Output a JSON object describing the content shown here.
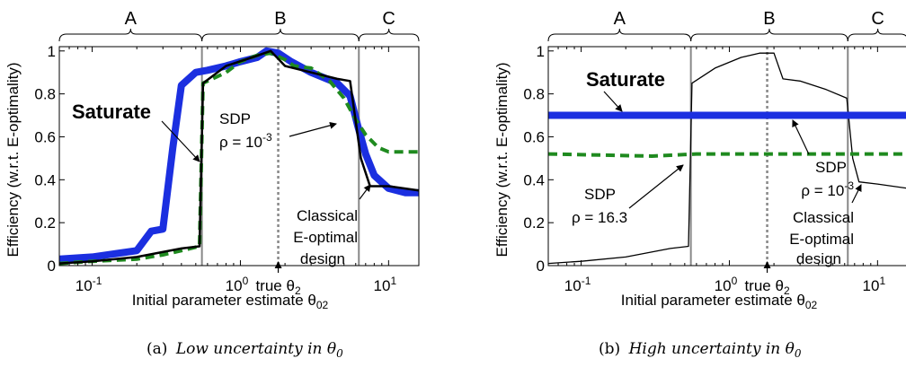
{
  "figure": {
    "captions": [
      {
        "label": "(a)",
        "text": "Low uncertainty in θ",
        "subscript": "0"
      },
      {
        "label": "(b)",
        "text": "High uncertainty in θ",
        "subscript": "0"
      }
    ]
  },
  "chart_data": [
    {
      "type": "line",
      "title": "",
      "xlabel": "Initial parameter estimate θ02",
      "ylabel": "Efficiency (w.r.t. E-optimality)",
      "xscale": "log",
      "xlim": [
        0.06,
        16
      ],
      "ylim": [
        0,
        1.02
      ],
      "xticks": [
        {
          "value": 0.1,
          "label": "10",
          "exp": "-1"
        },
        {
          "value": 1,
          "label": "10",
          "exp": "0"
        },
        {
          "value": 10,
          "label": "10",
          "exp": "1"
        }
      ],
      "yticks": [
        {
          "value": 0,
          "label": "0"
        },
        {
          "value": 0.2,
          "label": "0.2"
        },
        {
          "value": 0.4,
          "label": "0.4"
        },
        {
          "value": 0.6,
          "label": "0.6"
        },
        {
          "value": 0.8,
          "label": "0.8"
        },
        {
          "value": 1,
          "label": "1"
        }
      ],
      "regions": [
        {
          "label": "A",
          "x": [
            0.06,
            0.55
          ]
        },
        {
          "label": "B",
          "x": [
            0.55,
            6.3
          ]
        },
        {
          "label": "C",
          "x": [
            6.3,
            16
          ]
        }
      ],
      "vlines": [
        0.55,
        6.3
      ],
      "true_theta": {
        "x": 1.8,
        "label": "true θ",
        "subscript": "2"
      },
      "series": [
        {
          "name": "Classical E-optimal design",
          "color": "#000000",
          "style": "solid",
          "width": 2.5,
          "x": [
            0.06,
            0.1,
            0.2,
            0.4,
            0.53,
            0.56,
            0.8,
            1.2,
            1.6,
            2.0,
            3.0,
            4.5,
            5.5,
            6.5,
            7.5,
            10,
            16
          ],
          "y": [
            0.01,
            0.02,
            0.04,
            0.08,
            0.09,
            0.85,
            0.93,
            0.97,
            1.0,
            0.93,
            0.9,
            0.87,
            0.86,
            0.5,
            0.37,
            0.37,
            0.35
          ]
        },
        {
          "name": "Saturate",
          "color": "#1b2fe0",
          "style": "solid",
          "width": 8,
          "x": [
            0.06,
            0.1,
            0.2,
            0.25,
            0.3,
            0.35,
            0.4,
            0.5,
            0.6,
            0.8,
            1.0,
            1.3,
            1.5,
            1.8,
            2.2,
            3.0,
            4.5,
            5.5,
            6.2,
            7,
            8,
            10,
            13,
            16
          ],
          "y": [
            0.03,
            0.04,
            0.07,
            0.16,
            0.17,
            0.55,
            0.84,
            0.9,
            0.91,
            0.93,
            0.95,
            0.97,
            1.0,
            0.99,
            0.95,
            0.9,
            0.85,
            0.79,
            0.65,
            0.52,
            0.42,
            0.36,
            0.34,
            0.34
          ]
        },
        {
          "name": "SDP ρ = 10^-3",
          "color": "#1f8a1f",
          "style": "dashed",
          "width": 4,
          "x": [
            0.06,
            0.1,
            0.2,
            0.3,
            0.4,
            0.53,
            0.56,
            0.8,
            1.0,
            1.3,
            1.6,
            2.0,
            2.3,
            3.0,
            4.0,
            5.0,
            6.0,
            7.0,
            8.5,
            10,
            16
          ],
          "y": [
            0.01,
            0.02,
            0.03,
            0.05,
            0.07,
            0.09,
            0.85,
            0.9,
            0.95,
            0.98,
            0.99,
            0.96,
            0.93,
            0.92,
            0.86,
            0.78,
            0.68,
            0.61,
            0.55,
            0.53,
            0.53
          ]
        }
      ],
      "annotations": [
        {
          "text": "Saturate",
          "bold": true
        },
        {
          "text": "SDP"
        },
        {
          "text": "ρ = 10",
          "exp": "-3"
        },
        {
          "text": "Classical"
        },
        {
          "text": "E-optimal"
        },
        {
          "text": "design"
        }
      ]
    },
    {
      "type": "line",
      "title": "",
      "xlabel": "Initial parameter estimate θ02",
      "ylabel": "Efficiency (w.r.t. E-optimality)",
      "xscale": "log",
      "xlim": [
        0.06,
        16
      ],
      "ylim": [
        0,
        1.02
      ],
      "xticks": [
        {
          "value": 0.1,
          "label": "10",
          "exp": "-1"
        },
        {
          "value": 1,
          "label": "10",
          "exp": "0"
        },
        {
          "value": 10,
          "label": "10",
          "exp": "1"
        }
      ],
      "yticks": [
        {
          "value": 0,
          "label": "0"
        },
        {
          "value": 0.2,
          "label": "0.2"
        },
        {
          "value": 0.4,
          "label": "0.4"
        },
        {
          "value": 0.6,
          "label": "0.6"
        },
        {
          "value": 0.8,
          "label": "0.8"
        },
        {
          "value": 1,
          "label": "1"
        }
      ],
      "regions": [
        {
          "label": "A",
          "x": [
            0.06,
            0.55
          ]
        },
        {
          "label": "B",
          "x": [
            0.55,
            6.3
          ]
        },
        {
          "label": "C",
          "x": [
            6.3,
            16
          ]
        }
      ],
      "vlines": [
        0.55,
        6.3
      ],
      "true_theta": {
        "x": 1.8,
        "label": "true θ",
        "subscript": "2"
      },
      "series": [
        {
          "name": "Classical E-optimal design",
          "color": "#000000",
          "style": "solid",
          "width": 1.3,
          "x": [
            0.06,
            0.1,
            0.2,
            0.4,
            0.53,
            0.56,
            0.8,
            1.2,
            1.6,
            2.0,
            2.3,
            3.0,
            4.5,
            6.2,
            6.8,
            7.5,
            10,
            16
          ],
          "y": [
            0.01,
            0.02,
            0.04,
            0.08,
            0.09,
            0.85,
            0.92,
            0.97,
            0.99,
            0.99,
            0.87,
            0.86,
            0.82,
            0.78,
            0.5,
            0.39,
            0.38,
            0.36
          ]
        },
        {
          "name": "Saturate",
          "color": "#1b2fe0",
          "style": "solid",
          "width": 8,
          "x": [
            0.06,
            16
          ],
          "y": [
            0.7,
            0.7
          ]
        },
        {
          "name": "SDP ρ = 16.3",
          "color": "#1f8a1f",
          "style": "dashed",
          "width": 4,
          "x": [
            0.06,
            0.3,
            0.6,
            1,
            5,
            16
          ],
          "y": [
            0.52,
            0.51,
            0.52,
            0.52,
            0.52,
            0.52
          ]
        }
      ],
      "annotations": [
        {
          "text": "Saturate",
          "bold": true
        },
        {
          "text": "SDP"
        },
        {
          "text": "ρ = 16.3"
        },
        {
          "text": "SDP"
        },
        {
          "text": "ρ = 10",
          "exp": "-3"
        },
        {
          "text": "Classical"
        },
        {
          "text": "E-optimal"
        },
        {
          "text": "design"
        }
      ]
    }
  ]
}
